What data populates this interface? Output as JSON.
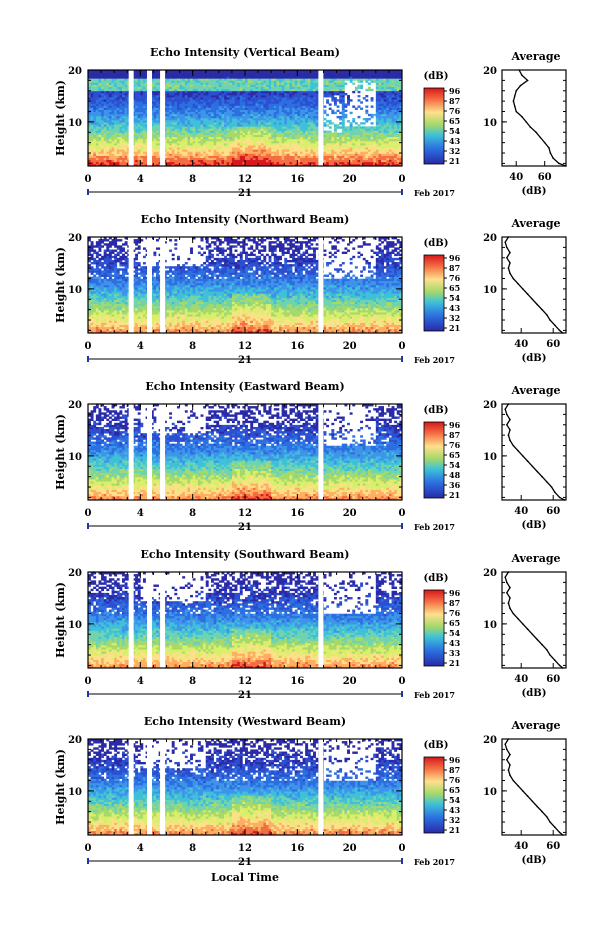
{
  "chart_data": [
    {
      "type": "heatmap",
      "title": "Echo Intensity (Vertical Beam)",
      "ylabel": "Height (km)",
      "y_ticks": [
        "20",
        "10"
      ],
      "x_ticks": [
        "0",
        "4",
        "8",
        "12",
        "16",
        "20",
        "0"
      ],
      "day_label": "21",
      "month_label": "Feb 2017",
      "xlim": [
        0,
        24
      ],
      "ylim": [
        1.5,
        20
      ],
      "colorbar": {
        "unit": "(dB)",
        "labels": [
          "96",
          "87",
          "76",
          "65",
          "54",
          "43",
          "32",
          "21"
        ]
      },
      "data_gaps_hours": [
        3.3,
        4.7,
        5.7,
        17.8
      ],
      "profile": {
        "title": "Average",
        "xlabel": "(dB)",
        "x_ticks": [
          "40",
          "60"
        ],
        "y_ticks": [
          "20",
          "10"
        ],
        "xlim": [
          30,
          75
        ],
        "heights_km": [
          1.5,
          2,
          3,
          4,
          5,
          6,
          7,
          8,
          9,
          10,
          11,
          12,
          13,
          14,
          15,
          16,
          17,
          18,
          19,
          20
        ],
        "values_db": [
          75,
          70,
          66,
          64,
          63,
          60,
          57,
          54,
          50,
          47,
          44,
          40,
          39,
          38,
          39,
          40,
          43,
          48,
          44,
          42
        ]
      }
    },
    {
      "type": "heatmap",
      "title": "Echo Intensity (Northward Beam)",
      "ylabel": "Height (km)",
      "y_ticks": [
        "20",
        "10"
      ],
      "x_ticks": [
        "0",
        "4",
        "8",
        "12",
        "16",
        "20",
        "0"
      ],
      "day_label": "21",
      "month_label": "Feb 2017",
      "xlim": [
        0,
        24
      ],
      "ylim": [
        1.5,
        20
      ],
      "colorbar": {
        "unit": "(dB)",
        "labels": [
          "96",
          "87",
          "76",
          "65",
          "54",
          "43",
          "32",
          "21"
        ]
      },
      "data_gaps_hours": [
        3.3,
        4.7,
        5.7,
        17.8
      ],
      "profile": {
        "title": "Average",
        "xlabel": "(dB)",
        "x_ticks": [
          "40",
          "60"
        ],
        "y_ticks": [
          "20",
          "10"
        ],
        "xlim": [
          28,
          68
        ],
        "heights_km": [
          1.5,
          2,
          3,
          4,
          5,
          6,
          7,
          8,
          9,
          10,
          11,
          12,
          13,
          14,
          15,
          16,
          17,
          18,
          19,
          20
        ],
        "values_db": [
          66,
          64,
          61,
          58,
          56,
          53,
          50,
          47,
          44,
          41,
          38,
          35,
          33,
          32,
          33,
          31,
          33,
          31,
          30,
          32
        ]
      }
    },
    {
      "type": "heatmap",
      "title": "Echo Intensity (Eastward Beam)",
      "ylabel": "Height (km)",
      "y_ticks": [
        "20",
        "10"
      ],
      "x_ticks": [
        "0",
        "4",
        "8",
        "12",
        "16",
        "20",
        "0"
      ],
      "day_label": "21",
      "month_label": "Feb 2017",
      "xlim": [
        0,
        24
      ],
      "ylim": [
        1.5,
        20
      ],
      "colorbar": {
        "unit": "(dB)",
        "labels": [
          "96",
          "87",
          "76",
          "65",
          "54",
          "48",
          "36",
          "21"
        ]
      },
      "data_gaps_hours": [
        3.3,
        4.7,
        5.7,
        17.8
      ],
      "profile": {
        "title": "Average",
        "xlabel": "(dB)",
        "x_ticks": [
          "40",
          "60"
        ],
        "y_ticks": [
          "20",
          "10"
        ],
        "xlim": [
          28,
          68
        ],
        "heights_km": [
          1.5,
          2,
          3,
          4,
          5,
          6,
          7,
          8,
          9,
          10,
          11,
          12,
          13,
          14,
          15,
          16,
          17,
          18,
          19,
          20
        ],
        "values_db": [
          67,
          64,
          61,
          59,
          56,
          53,
          50,
          47,
          44,
          41,
          38,
          35,
          33,
          32,
          33,
          31,
          33,
          31,
          30,
          32
        ]
      }
    },
    {
      "type": "heatmap",
      "title": "Echo Intensity (Southward Beam)",
      "ylabel": "Height (km)",
      "y_ticks": [
        "20",
        "10"
      ],
      "x_ticks": [
        "0",
        "4",
        "8",
        "12",
        "16",
        "20",
        "0"
      ],
      "day_label": "21",
      "month_label": "Feb 2017",
      "xlim": [
        0,
        24
      ],
      "ylim": [
        1.5,
        20
      ],
      "colorbar": {
        "unit": "(dB)",
        "labels": [
          "96",
          "87",
          "76",
          "65",
          "54",
          "43",
          "33",
          "21"
        ]
      },
      "data_gaps_hours": [
        3.3,
        4.7,
        5.7,
        17.8
      ],
      "profile": {
        "title": "Average",
        "xlabel": "(dB)",
        "x_ticks": [
          "40",
          "60"
        ],
        "y_ticks": [
          "20",
          "10"
        ],
        "xlim": [
          28,
          68
        ],
        "heights_km": [
          1.5,
          2,
          3,
          4,
          5,
          6,
          7,
          8,
          9,
          10,
          11,
          12,
          13,
          14,
          15,
          16,
          17,
          18,
          19,
          20
        ],
        "values_db": [
          66,
          64,
          61,
          58,
          56,
          53,
          50,
          47,
          44,
          41,
          38,
          35,
          33,
          32,
          33,
          31,
          33,
          31,
          30,
          32
        ]
      }
    },
    {
      "type": "heatmap",
      "title": "Echo Intensity (Westward Beam)",
      "ylabel": "Height (km)",
      "xlabel": "Local Time",
      "y_ticks": [
        "20",
        "10"
      ],
      "x_ticks": [
        "0",
        "4",
        "8",
        "12",
        "16",
        "20",
        "0"
      ],
      "day_label": "21",
      "month_label": "Feb 2017",
      "xlim": [
        0,
        24
      ],
      "ylim": [
        1.5,
        20
      ],
      "colorbar": {
        "unit": "(dB)",
        "labels": [
          "96",
          "87",
          "76",
          "65",
          "54",
          "43",
          "32",
          "21"
        ]
      },
      "data_gaps_hours": [
        3.3,
        4.7,
        5.7,
        17.8
      ],
      "profile": {
        "title": "Average",
        "xlabel": "(dB)",
        "x_ticks": [
          "40",
          "60"
        ],
        "y_ticks": [
          "20",
          "10"
        ],
        "xlim": [
          28,
          68
        ],
        "heights_km": [
          1.5,
          2,
          3,
          4,
          5,
          6,
          7,
          8,
          9,
          10,
          11,
          12,
          13,
          14,
          15,
          16,
          17,
          18,
          19,
          20
        ],
        "values_db": [
          66,
          64,
          61,
          58,
          56,
          53,
          50,
          47,
          44,
          41,
          38,
          35,
          33,
          32,
          33,
          31,
          33,
          31,
          30,
          32
        ]
      }
    }
  ]
}
